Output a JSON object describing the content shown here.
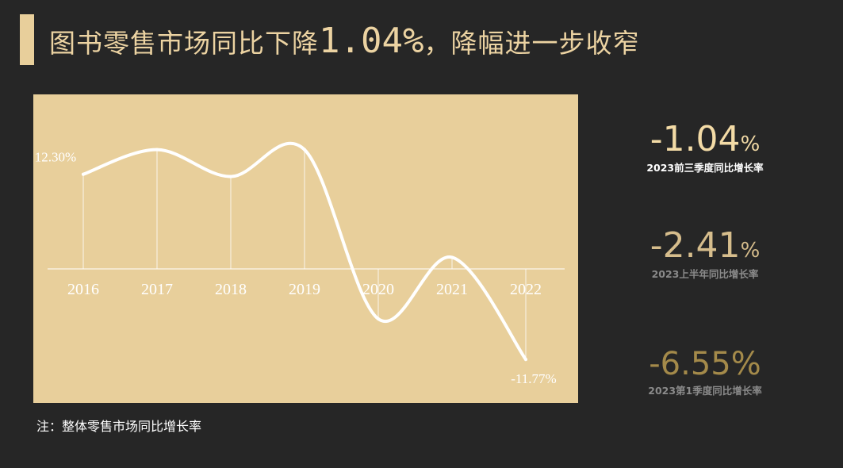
{
  "title": {
    "prefix": "图书零售市场同比下降",
    "highlight": "1.04%",
    "suffix": "，降幅进一步收窄"
  },
  "chart_data": {
    "type": "line",
    "categories": [
      "2016",
      "2017",
      "2018",
      "2019",
      "2020",
      "2021",
      "2022"
    ],
    "values": [
      12.3,
      15.5,
      12.0,
      15.5,
      -6.5,
      1.5,
      -11.77
    ],
    "data_labels": [
      {
        "index": 0,
        "text": "12.30%"
      },
      {
        "index": 6,
        "text": "-11.77%"
      }
    ],
    "ylim": [
      -14,
      30
    ],
    "grid": false,
    "title": "",
    "xlabel": "",
    "ylabel": ""
  },
  "stats": [
    {
      "value": "-1.04",
      "unit": "%",
      "caption": "2023前三季度同比增长率"
    },
    {
      "value": "-2.41",
      "unit": "%",
      "caption": "2023上半年同比增长率"
    },
    {
      "value": "-6.55",
      "unit": "%",
      "caption": "2023第1季度同比增长率"
    }
  ],
  "note": "注：整体零售市场同比增长率",
  "colors": {
    "background": "#262626",
    "accent": "#e8cf9b",
    "line": "#ffffff"
  }
}
